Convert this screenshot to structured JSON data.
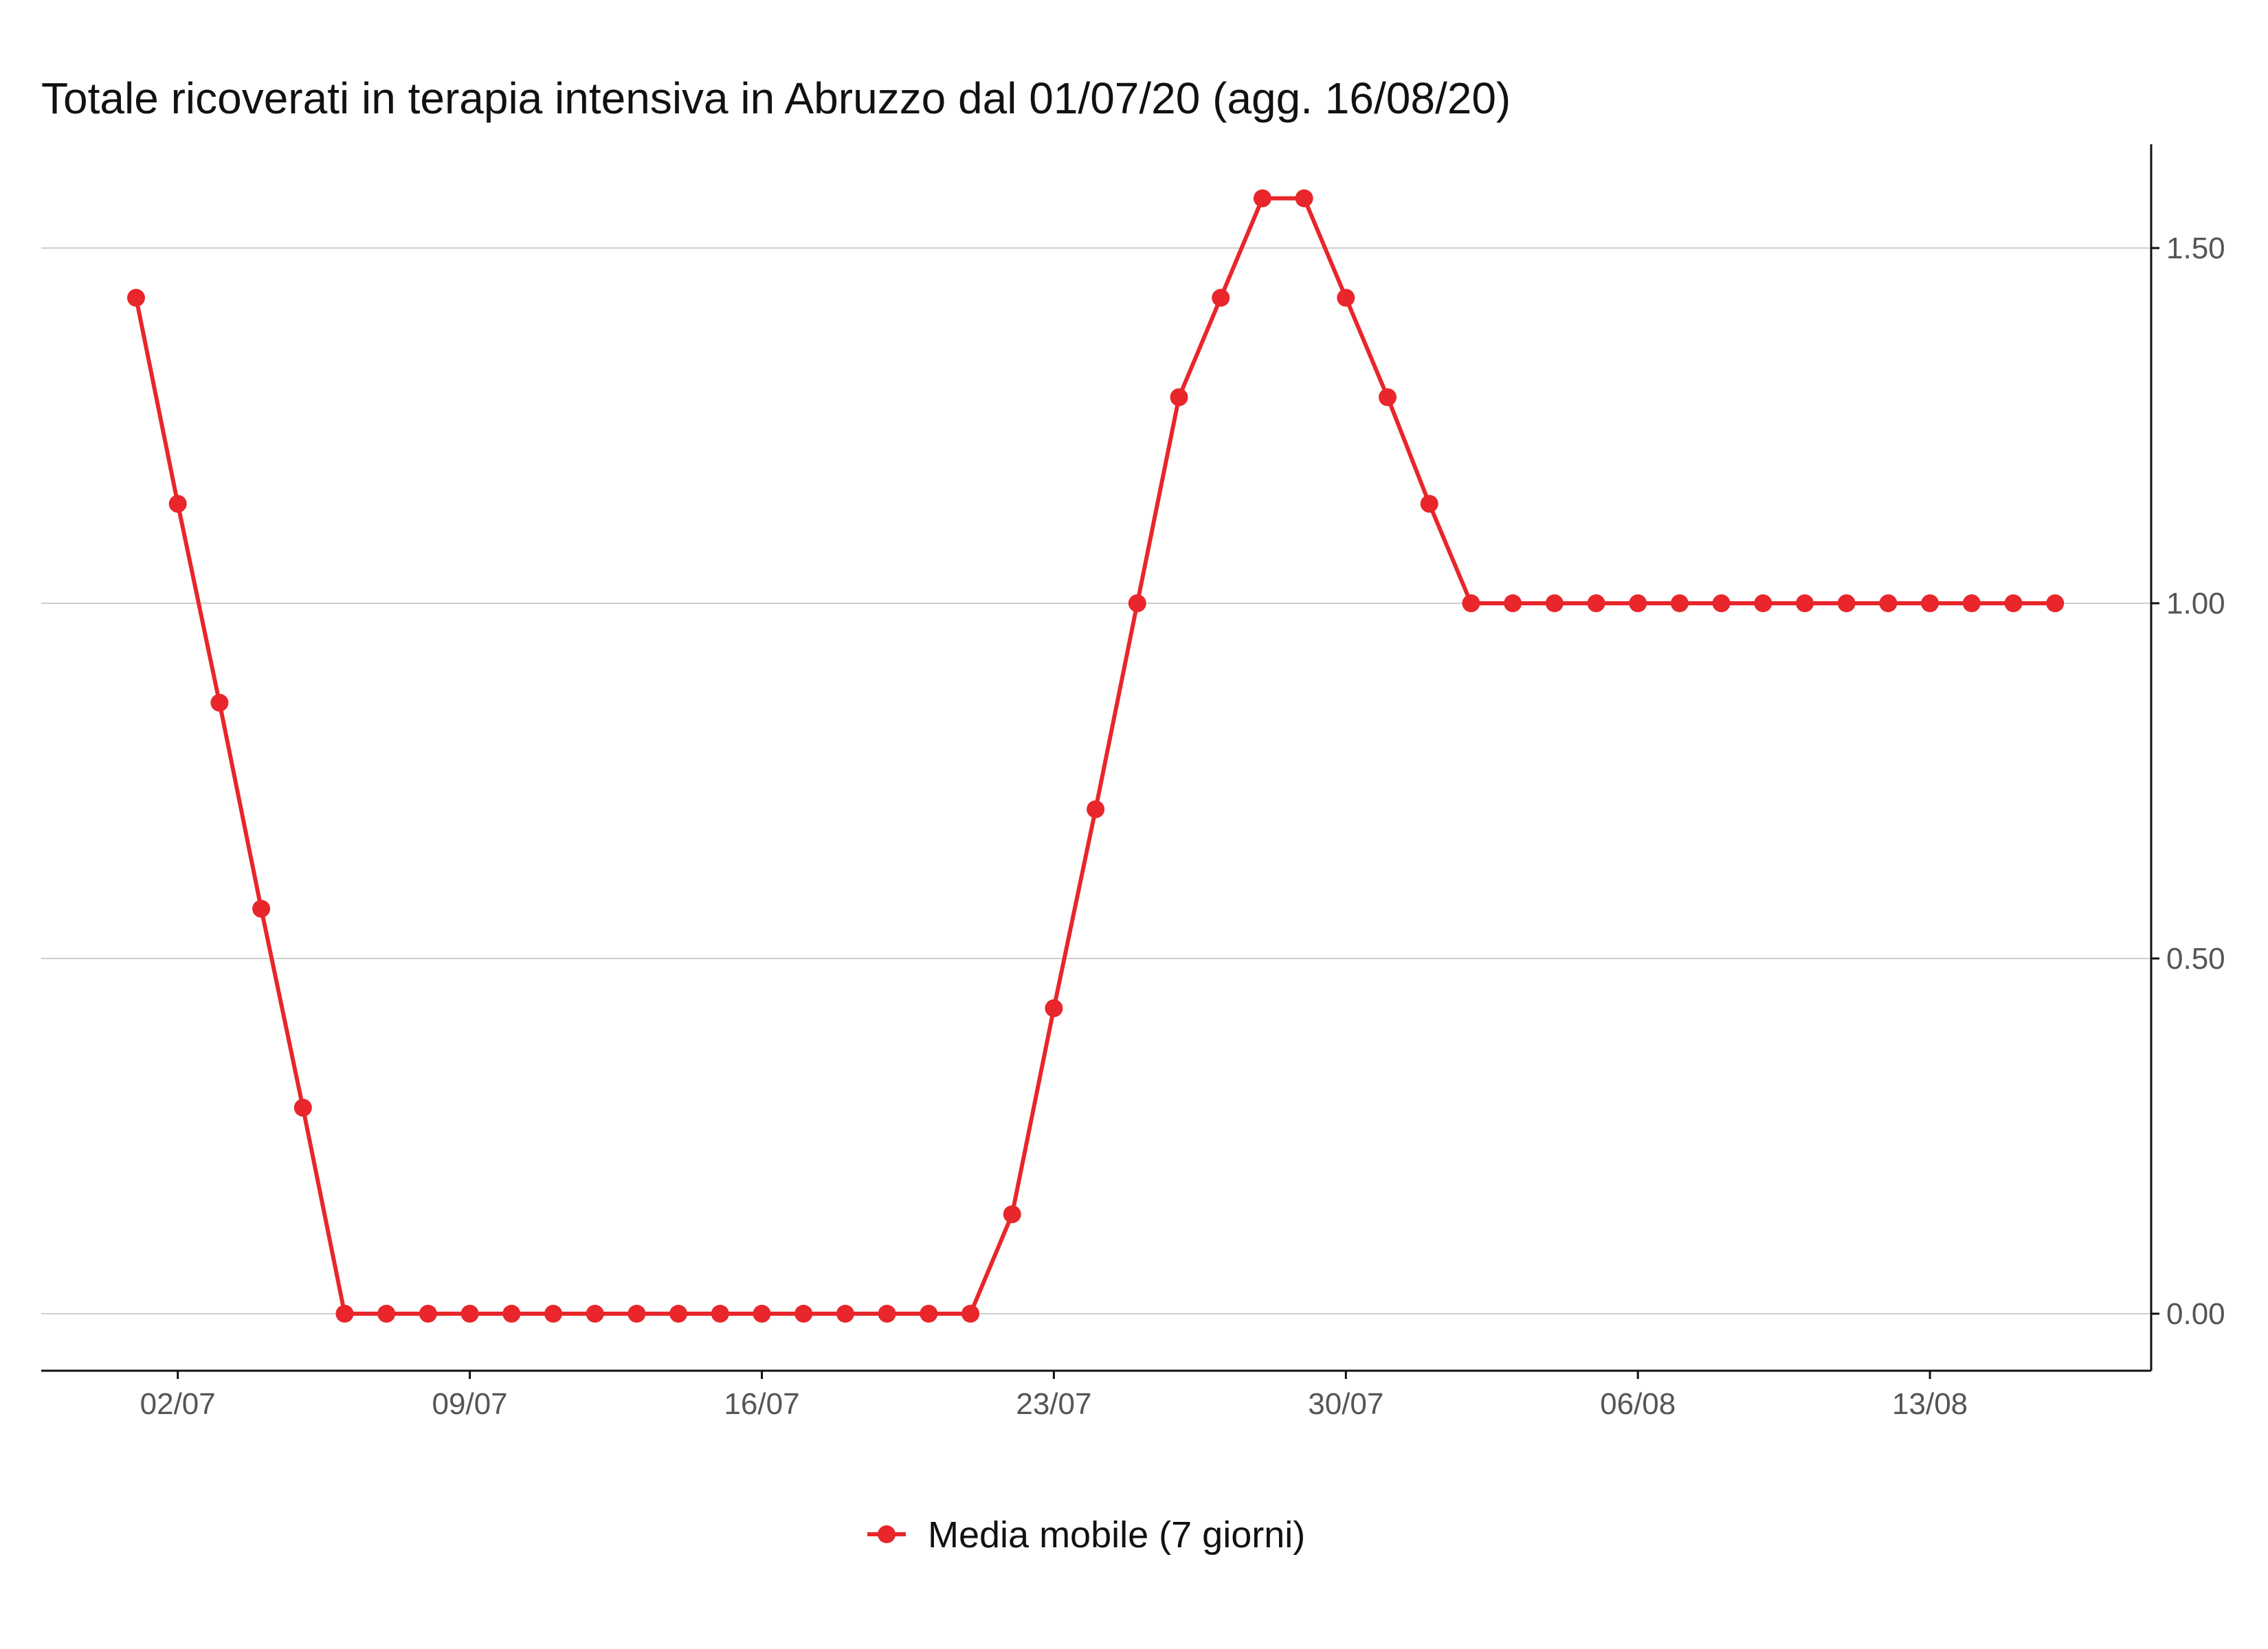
{
  "chart_data": {
    "type": "line",
    "title": "Totale ricoverati in terapia intensiva in Abruzzo dal 01/07/20 (agg. 16/08/20)",
    "xlabel": "",
    "ylabel": "",
    "x": [
      "01/07",
      "02/07",
      "03/07",
      "04/07",
      "05/07",
      "06/07",
      "07/07",
      "08/07",
      "09/07",
      "10/07",
      "11/07",
      "12/07",
      "13/07",
      "14/07",
      "15/07",
      "16/07",
      "17/07",
      "18/07",
      "19/07",
      "20/07",
      "21/07",
      "22/07",
      "23/07",
      "24/07",
      "25/07",
      "26/07",
      "27/07",
      "28/07",
      "29/07",
      "30/07",
      "31/07",
      "01/08",
      "02/08",
      "03/08",
      "04/08",
      "05/08",
      "06/08",
      "07/08",
      "08/08",
      "09/08",
      "10/08",
      "11/08",
      "12/08",
      "13/08",
      "14/08",
      "15/08",
      "16/08"
    ],
    "x_ticks": [
      "02/07",
      "09/07",
      "16/07",
      "23/07",
      "30/07",
      "06/08",
      "13/08"
    ],
    "y_ticks": [
      "0.00",
      "0.50",
      "1.00",
      "1.50"
    ],
    "ylim": [
      -0.08,
      1.65
    ],
    "y_axis_side": "right",
    "grid": "horizontal major",
    "legend_position": "bottom",
    "series": [
      {
        "name": "Media mobile (7 giorni)",
        "color": "#e8262b",
        "values": [
          1.43,
          1.14,
          0.86,
          0.57,
          0.29,
          0,
          0,
          0,
          0,
          0,
          0,
          0,
          0,
          0,
          0,
          0,
          0,
          0,
          0,
          0,
          0,
          0.14,
          0.43,
          0.71,
          1.0,
          1.29,
          1.43,
          1.57,
          1.57,
          1.43,
          1.29,
          1.14,
          1.0,
          1.0,
          1.0,
          1.0,
          1.0,
          1.0,
          1.0,
          1.0,
          1.0,
          1.0,
          1.0,
          1.0,
          1.0,
          1.0,
          1.0
        ]
      }
    ]
  }
}
